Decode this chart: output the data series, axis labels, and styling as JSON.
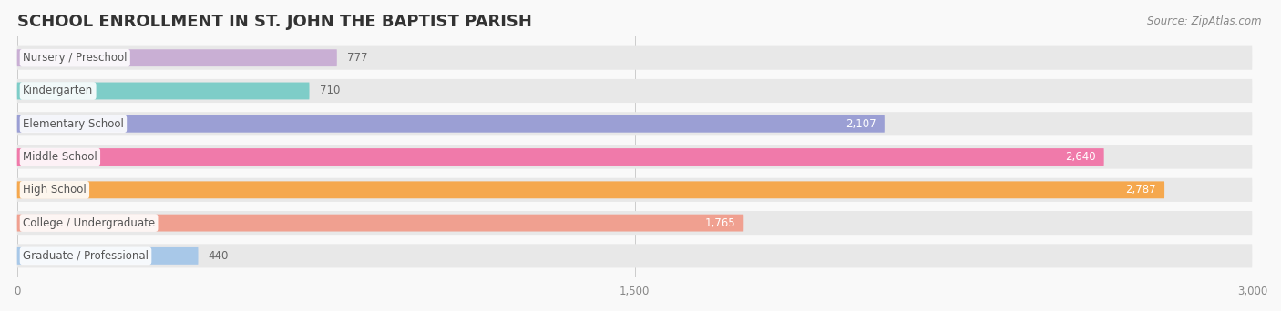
{
  "title": "SCHOOL ENROLLMENT IN ST. JOHN THE BAPTIST PARISH",
  "source": "Source: ZipAtlas.com",
  "categories": [
    "Nursery / Preschool",
    "Kindergarten",
    "Elementary School",
    "Middle School",
    "High School",
    "College / Undergraduate",
    "Graduate / Professional"
  ],
  "values": [
    777,
    710,
    2107,
    2640,
    2787,
    1765,
    440
  ],
  "bar_colors": [
    "#c9afd4",
    "#7ecdc8",
    "#9b9fd4",
    "#f07aaa",
    "#f5a84e",
    "#f0a090",
    "#a8c8e8"
  ],
  "bar_bg_color": "#e8e8e8",
  "background_color": "#f9f9f9",
  "xlim": [
    0,
    3000
  ],
  "xticks": [
    0,
    1500,
    3000
  ],
  "title_fontsize": 13,
  "label_fontsize": 8.5,
  "value_fontsize": 8.5,
  "source_fontsize": 8.5,
  "title_color": "#333333",
  "label_color": "#555555",
  "value_color": "#666666",
  "source_color": "#888888",
  "value_threshold": 1765
}
